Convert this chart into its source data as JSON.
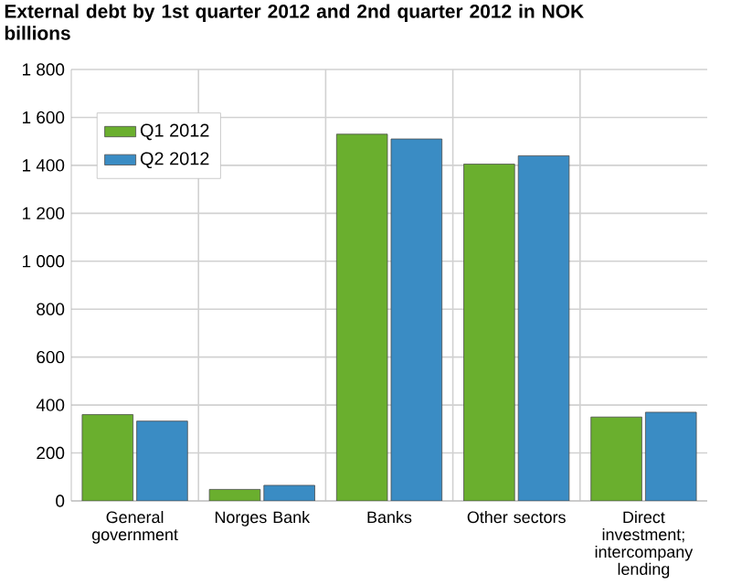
{
  "chart_data": {
    "type": "bar",
    "title": "External debt by 1st quarter 2012 and 2nd quarter 2012 in NOK billions",
    "categories": [
      "General government",
      "Norges Bank",
      "Banks",
      "Other sectors",
      "Direct investment; intercompany lending"
    ],
    "series": [
      {
        "name": "Q1 2012",
        "color": "#6aaf2e",
        "values": [
          360,
          48,
          1530,
          1405,
          350
        ]
      },
      {
        "name": "Q2 2012",
        "color": "#3a8cc4",
        "values": [
          333,
          65,
          1510,
          1440,
          370
        ]
      }
    ],
    "ylim": [
      0,
      1800
    ],
    "yticks": [
      {
        "value": 0,
        "label": "0"
      },
      {
        "value": 200,
        "label": "200"
      },
      {
        "value": 400,
        "label": "400"
      },
      {
        "value": 600,
        "label": "600"
      },
      {
        "value": 800,
        "label": "800"
      },
      {
        "value": 1000,
        "label": "1 000"
      },
      {
        "value": 1200,
        "label": "1 200"
      },
      {
        "value": 1400,
        "label": "1 400"
      },
      {
        "value": 1600,
        "label": "1 600"
      },
      {
        "value": 1800,
        "label": "1 800"
      }
    ],
    "grid": true,
    "legend": "top left"
  }
}
